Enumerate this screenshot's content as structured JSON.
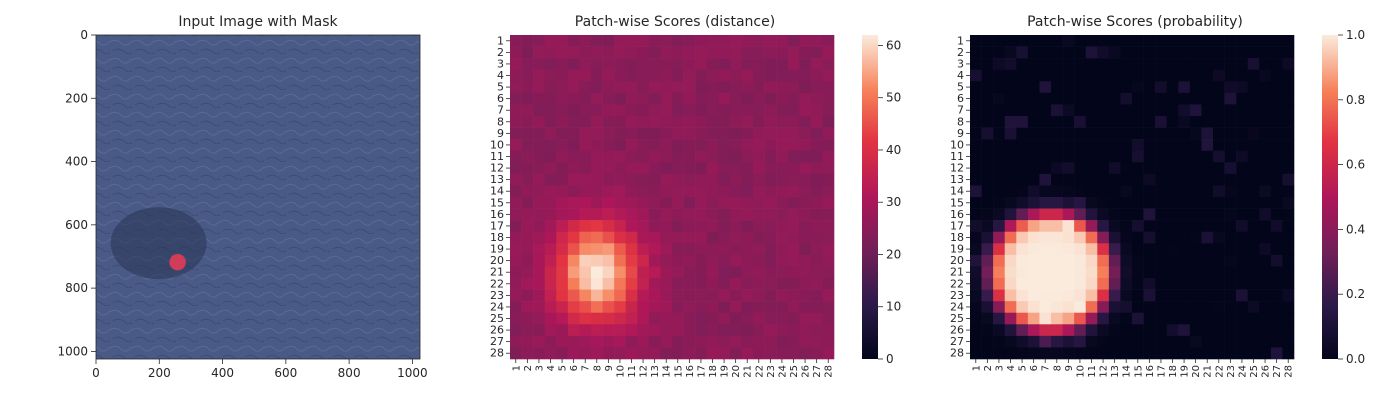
{
  "chart_data": [
    {
      "type": "image",
      "title": "Input Image with Mask",
      "xlim": [
        0,
        1024
      ],
      "ylim": [
        1024,
        0
      ],
      "xticks": [
        0,
        200,
        400,
        600,
        800,
        1000
      ],
      "yticks": [
        0,
        200,
        400,
        600,
        800,
        1000
      ],
      "background_color": "#4a5a86",
      "mask": {
        "cx": 258,
        "cy": 718,
        "r": 26,
        "color": "#e23b56"
      }
    },
    {
      "type": "heatmap",
      "title": "Patch-wise Scores (distance)",
      "rows": 28,
      "cols": 28,
      "x_tick_labels": [
        "1",
        "2",
        "3",
        "4",
        "5",
        "6",
        "7",
        "8",
        "9",
        "10",
        "11",
        "12",
        "13",
        "14",
        "15",
        "16",
        "17",
        "18",
        "19",
        "20",
        "21",
        "22",
        "23",
        "24",
        "25",
        "26",
        "27",
        "28"
      ],
      "y_tick_labels": [
        "1",
        "2",
        "3",
        "4",
        "5",
        "6",
        "7",
        "8",
        "9",
        "10",
        "11",
        "12",
        "13",
        "14",
        "15",
        "16",
        "17",
        "18",
        "19",
        "20",
        "21",
        "22",
        "23",
        "24",
        "25",
        "26",
        "27",
        "28"
      ],
      "vmin": 0,
      "vmax": 62,
      "colorbar_ticks": [
        0,
        10,
        20,
        30,
        40,
        50,
        60
      ],
      "colorbar_tick_labels": [
        "0",
        "10",
        "20",
        "30",
        "40",
        "50",
        "60"
      ],
      "hotspot": {
        "row": 21,
        "col": 8,
        "peak": 62,
        "sigma_row": 3.0,
        "sigma_col": 2.6
      },
      "baseline": 25
    },
    {
      "type": "heatmap",
      "title": "Patch-wise Scores (probability)",
      "rows": 28,
      "cols": 28,
      "x_tick_labels": [
        "1",
        "2",
        "3",
        "4",
        "5",
        "6",
        "7",
        "8",
        "9",
        "10",
        "11",
        "12",
        "13",
        "14",
        "15",
        "16",
        "17",
        "18",
        "19",
        "20",
        "21",
        "22",
        "23",
        "24",
        "25",
        "26",
        "27",
        "28"
      ],
      "y_tick_labels": [
        "1",
        "2",
        "3",
        "4",
        "5",
        "6",
        "7",
        "8",
        "9",
        "10",
        "11",
        "12",
        "13",
        "14",
        "15",
        "16",
        "17",
        "18",
        "19",
        "20",
        "21",
        "22",
        "23",
        "24",
        "25",
        "26",
        "27",
        "28"
      ],
      "vmin": 0.0,
      "vmax": 1.0,
      "colorbar_ticks": [
        0.0,
        0.2,
        0.4,
        0.6,
        0.8,
        1.0
      ],
      "colorbar_tick_labels": [
        "0.0",
        "0.2",
        "0.4",
        "0.6",
        "0.8",
        "1.0"
      ],
      "hotspot": {
        "row": 21,
        "col": 7.5,
        "peak": 1.0,
        "radius": 5.2
      }
    }
  ]
}
